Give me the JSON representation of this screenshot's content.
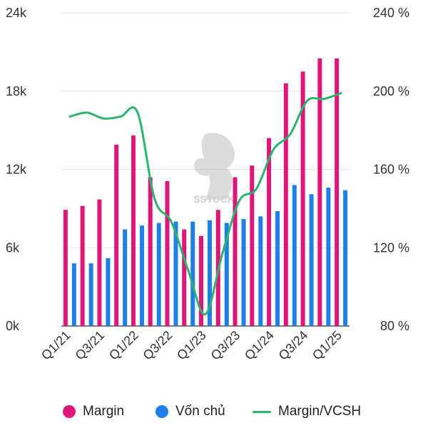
{
  "chart_data": {
    "type": "bar+line",
    "categories": [
      "Q1/21",
      "Q2/21",
      "Q3/21",
      "Q4/21",
      "Q1/22",
      "Q2/22",
      "Q3/22",
      "Q4/22",
      "Q1/23",
      "Q2/23",
      "Q3/23",
      "Q4/23",
      "Q1/24",
      "Q2/24",
      "Q3/24",
      "Q4/24",
      "Q1/25"
    ],
    "x_tick_labels": [
      "Q1/21",
      "Q3/21",
      "Q1/22",
      "Q3/22",
      "Q1/23",
      "Q3/23",
      "Q1/24",
      "Q3/24",
      "Q1/25"
    ],
    "series": [
      {
        "name": "Margin",
        "type": "bar",
        "axis": "left",
        "color": "#e0157a",
        "values": [
          8900,
          9200,
          9700,
          13900,
          14600,
          11400,
          11100,
          7400,
          6900,
          8900,
          11400,
          12300,
          14400,
          18600,
          19500,
          20500,
          20500
        ]
      },
      {
        "name": "Vốn chủ",
        "type": "bar",
        "axis": "left",
        "color": "#1f7fe8",
        "values": [
          4800,
          4800,
          5200,
          7400,
          7700,
          7900,
          8000,
          8000,
          8100,
          7900,
          8200,
          8400,
          8800,
          10800,
          10100,
          10600,
          10400
        ]
      },
      {
        "name": "Margin/VCSH",
        "type": "line",
        "axis": "right",
        "color": "#2cb36c",
        "values": [
          187,
          189,
          186,
          187,
          189,
          145,
          133,
          108,
          86,
          117,
          144,
          150,
          170,
          178,
          195,
          196,
          199
        ]
      }
    ],
    "y_left": {
      "min": 0,
      "max": 24000,
      "ticks": [
        0,
        6000,
        12000,
        18000,
        24000
      ],
      "tick_labels": [
        "0k",
        "6k",
        "12k",
        "18k",
        "24k"
      ]
    },
    "y_right": {
      "min": 80,
      "max": 240,
      "ticks": [
        80,
        120,
        160,
        200,
        240
      ],
      "tick_labels": [
        "80 %",
        "120 %",
        "160 %",
        "200 %",
        "240 %"
      ]
    },
    "grid": true,
    "legend_position": "bottom",
    "watermark_text": "SSTOCK"
  },
  "legend": {
    "margin_label": "Margin",
    "von_chu_label": "Vốn chủ",
    "ratio_label": "Margin/VCSH"
  }
}
